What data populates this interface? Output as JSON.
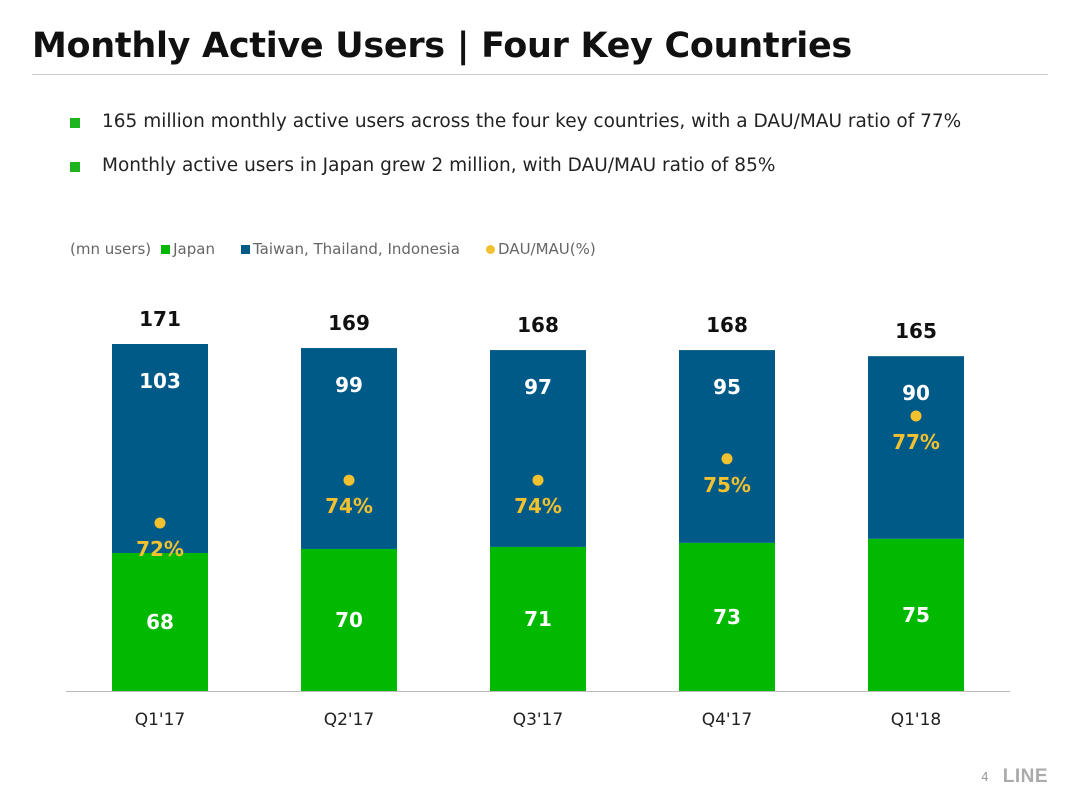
{
  "title": "Monthly Active Users | Four Key Countries",
  "bullets": [
    "165 million monthly active users across the four key countries, with a DAU/MAU ratio of 77%",
    "Monthly active users in Japan grew 2 million, with DAU/MAU ratio of 85%"
  ],
  "colors": {
    "japan": "#00b900",
    "others": "#005a87",
    "ratio": "#f2c130",
    "bullet": "#1db41d",
    "axis": "#bbbbbb"
  },
  "chart_data": {
    "type": "bar",
    "stacked": true,
    "unit_label": "(mn users)",
    "categories": [
      "Q1'17",
      "Q2'17",
      "Q3'17",
      "Q4'17",
      "Q1'18"
    ],
    "totals": [
      171,
      169,
      168,
      168,
      165
    ],
    "series": [
      {
        "name": "Japan",
        "values": [
          68,
          70,
          71,
          73,
          75
        ]
      },
      {
        "name": "Taiwan, Thailand, Indonesia",
        "values": [
          103,
          99,
          97,
          95,
          90
        ]
      }
    ],
    "ratio_series": {
      "name": "DAU/MAU(%)",
      "values": [
        72,
        74,
        74,
        75,
        77
      ],
      "labels": [
        "72%",
        "74%",
        "74%",
        "75%",
        "77%"
      ]
    },
    "ylim": [
      0,
      171
    ],
    "grid": false,
    "legend_position": "top-left"
  },
  "footer": {
    "page_number": "4",
    "logo": "LINE"
  }
}
